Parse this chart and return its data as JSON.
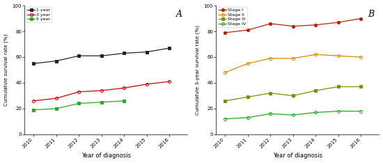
{
  "years": [
    2010,
    2011,
    2012,
    2013,
    2014,
    2015,
    2016
  ],
  "panel_A": {
    "title": "A",
    "ylabel": "Cumulatvie survival rate (%)",
    "xlabel": "Year of diagnosis",
    "ylim": [
      0,
      100
    ],
    "yticks": [
      0,
      20,
      40,
      60,
      80,
      100
    ],
    "series": [
      {
        "label": "1 year",
        "color": "#222222",
        "marker": "s",
        "marker_face": "#222222",
        "values": [
          55,
          57,
          61,
          61,
          63,
          64,
          67
        ]
      },
      {
        "label": "3 year",
        "color": "#cc0000",
        "marker": "o",
        "marker_face": "none",
        "values": [
          26,
          28,
          33,
          34,
          36,
          39,
          41
        ]
      },
      {
        "label": "5 year",
        "color": "#22aa22",
        "marker": "s",
        "marker_face": "#22aa22",
        "values": [
          19,
          20,
          24,
          25,
          26,
          null,
          null
        ]
      }
    ]
  },
  "panel_B": {
    "title": "B",
    "ylabel": "Cumulatvie 3-year survival rate (%)",
    "xlabel": "Year of diagnosis",
    "ylim": [
      0,
      100
    ],
    "yticks": [
      0,
      20,
      40,
      60,
      80,
      100
    ],
    "series": [
      {
        "label": "Stage I",
        "color": "#bb2200",
        "marker": "o",
        "marker_face": "#bb2200",
        "values": [
          79,
          81,
          86,
          84,
          85,
          87,
          90
        ]
      },
      {
        "label": "Stage II",
        "color": "#dd8800",
        "marker": "o",
        "marker_face": "none",
        "values": [
          48,
          55,
          59,
          59,
          62,
          61,
          60
        ]
      },
      {
        "label": "Stage III",
        "color": "#888800",
        "marker": "s",
        "marker_face": "#888800",
        "values": [
          26,
          29,
          32,
          30,
          34,
          37,
          37
        ]
      },
      {
        "label": "Stage IV",
        "color": "#22aa22",
        "marker": "o",
        "marker_face": "none",
        "values": [
          12,
          13,
          16,
          15,
          17,
          18,
          18
        ]
      }
    ]
  }
}
